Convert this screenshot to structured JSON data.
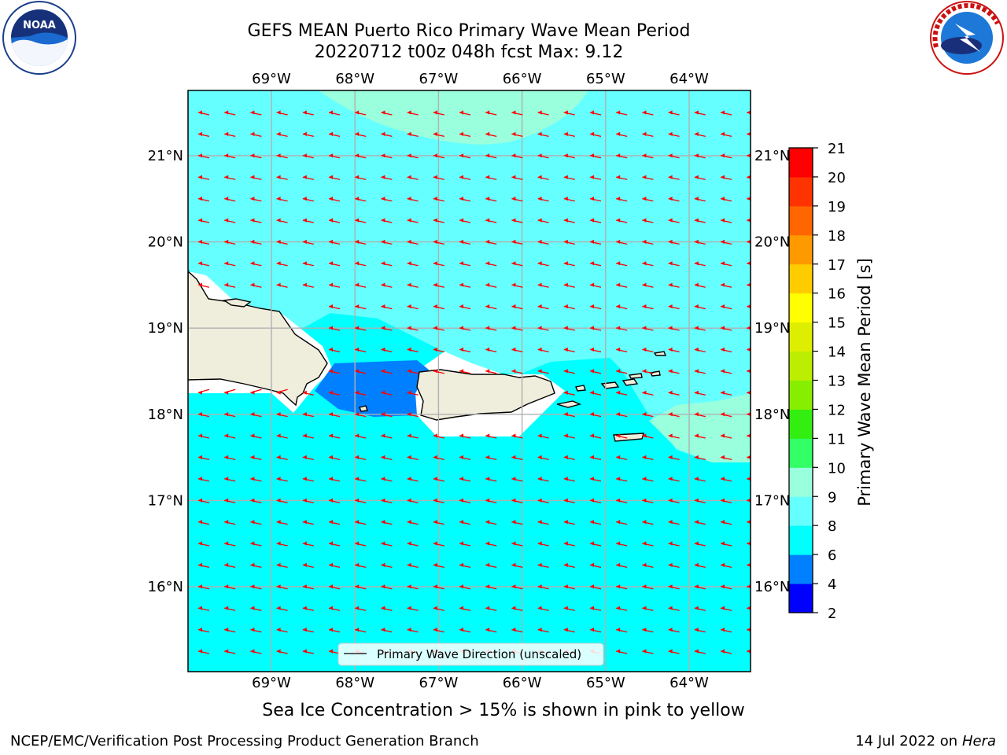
{
  "title_line1": "GEFS MEAN Puerto Rico Primary Wave Mean Period",
  "title_line2": "20220712 t00z 048h fcst   Max: 9.12",
  "logos": {
    "left": "noaa-logo",
    "right": "nws-logo",
    "left_text": "NOAA",
    "right_text": "NATIONAL WEATHER SERVICE"
  },
  "lon_labels": [
    "69°W",
    "68°W",
    "67°W",
    "66°W",
    "65°W",
    "64°W"
  ],
  "lat_labels": [
    "21°N",
    "20°N",
    "19°N",
    "18°N",
    "17°N",
    "16°N"
  ],
  "legend_label": "Primary Wave Direction (unscaled)",
  "colorbar": {
    "label": "Primary Wave Mean Period [s]",
    "ticks": [
      "2",
      "4",
      "6",
      "8",
      "9",
      "10",
      "11",
      "12",
      "13",
      "14",
      "15",
      "16",
      "17",
      "18",
      "19",
      "20",
      "21"
    ],
    "colors": [
      "#0000ff",
      "#0080ff",
      "#00ffff",
      "#66ffff",
      "#99ffdd",
      "#33ff66",
      "#33ee11",
      "#88ee00",
      "#bbee00",
      "#ddee00",
      "#ffff00",
      "#ffcc00",
      "#ff9900",
      "#ff6600",
      "#ff3300",
      "#ff0000"
    ]
  },
  "region_colors": {
    "sea": "#00ffff",
    "light": "#66ffff",
    "pale": "#99ffdd",
    "low": "#0080ff",
    "land": "#efeddc",
    "arrow": "#ff0000"
  },
  "footnote": "Sea Ice Concentration > 15% is shown in pink to yellow",
  "footer_left": "NCEP/EMC/Verification Post Processing Product Generation Branch",
  "footer_date": "14 Jul 2022 on ",
  "footer_host": "Hera"
}
